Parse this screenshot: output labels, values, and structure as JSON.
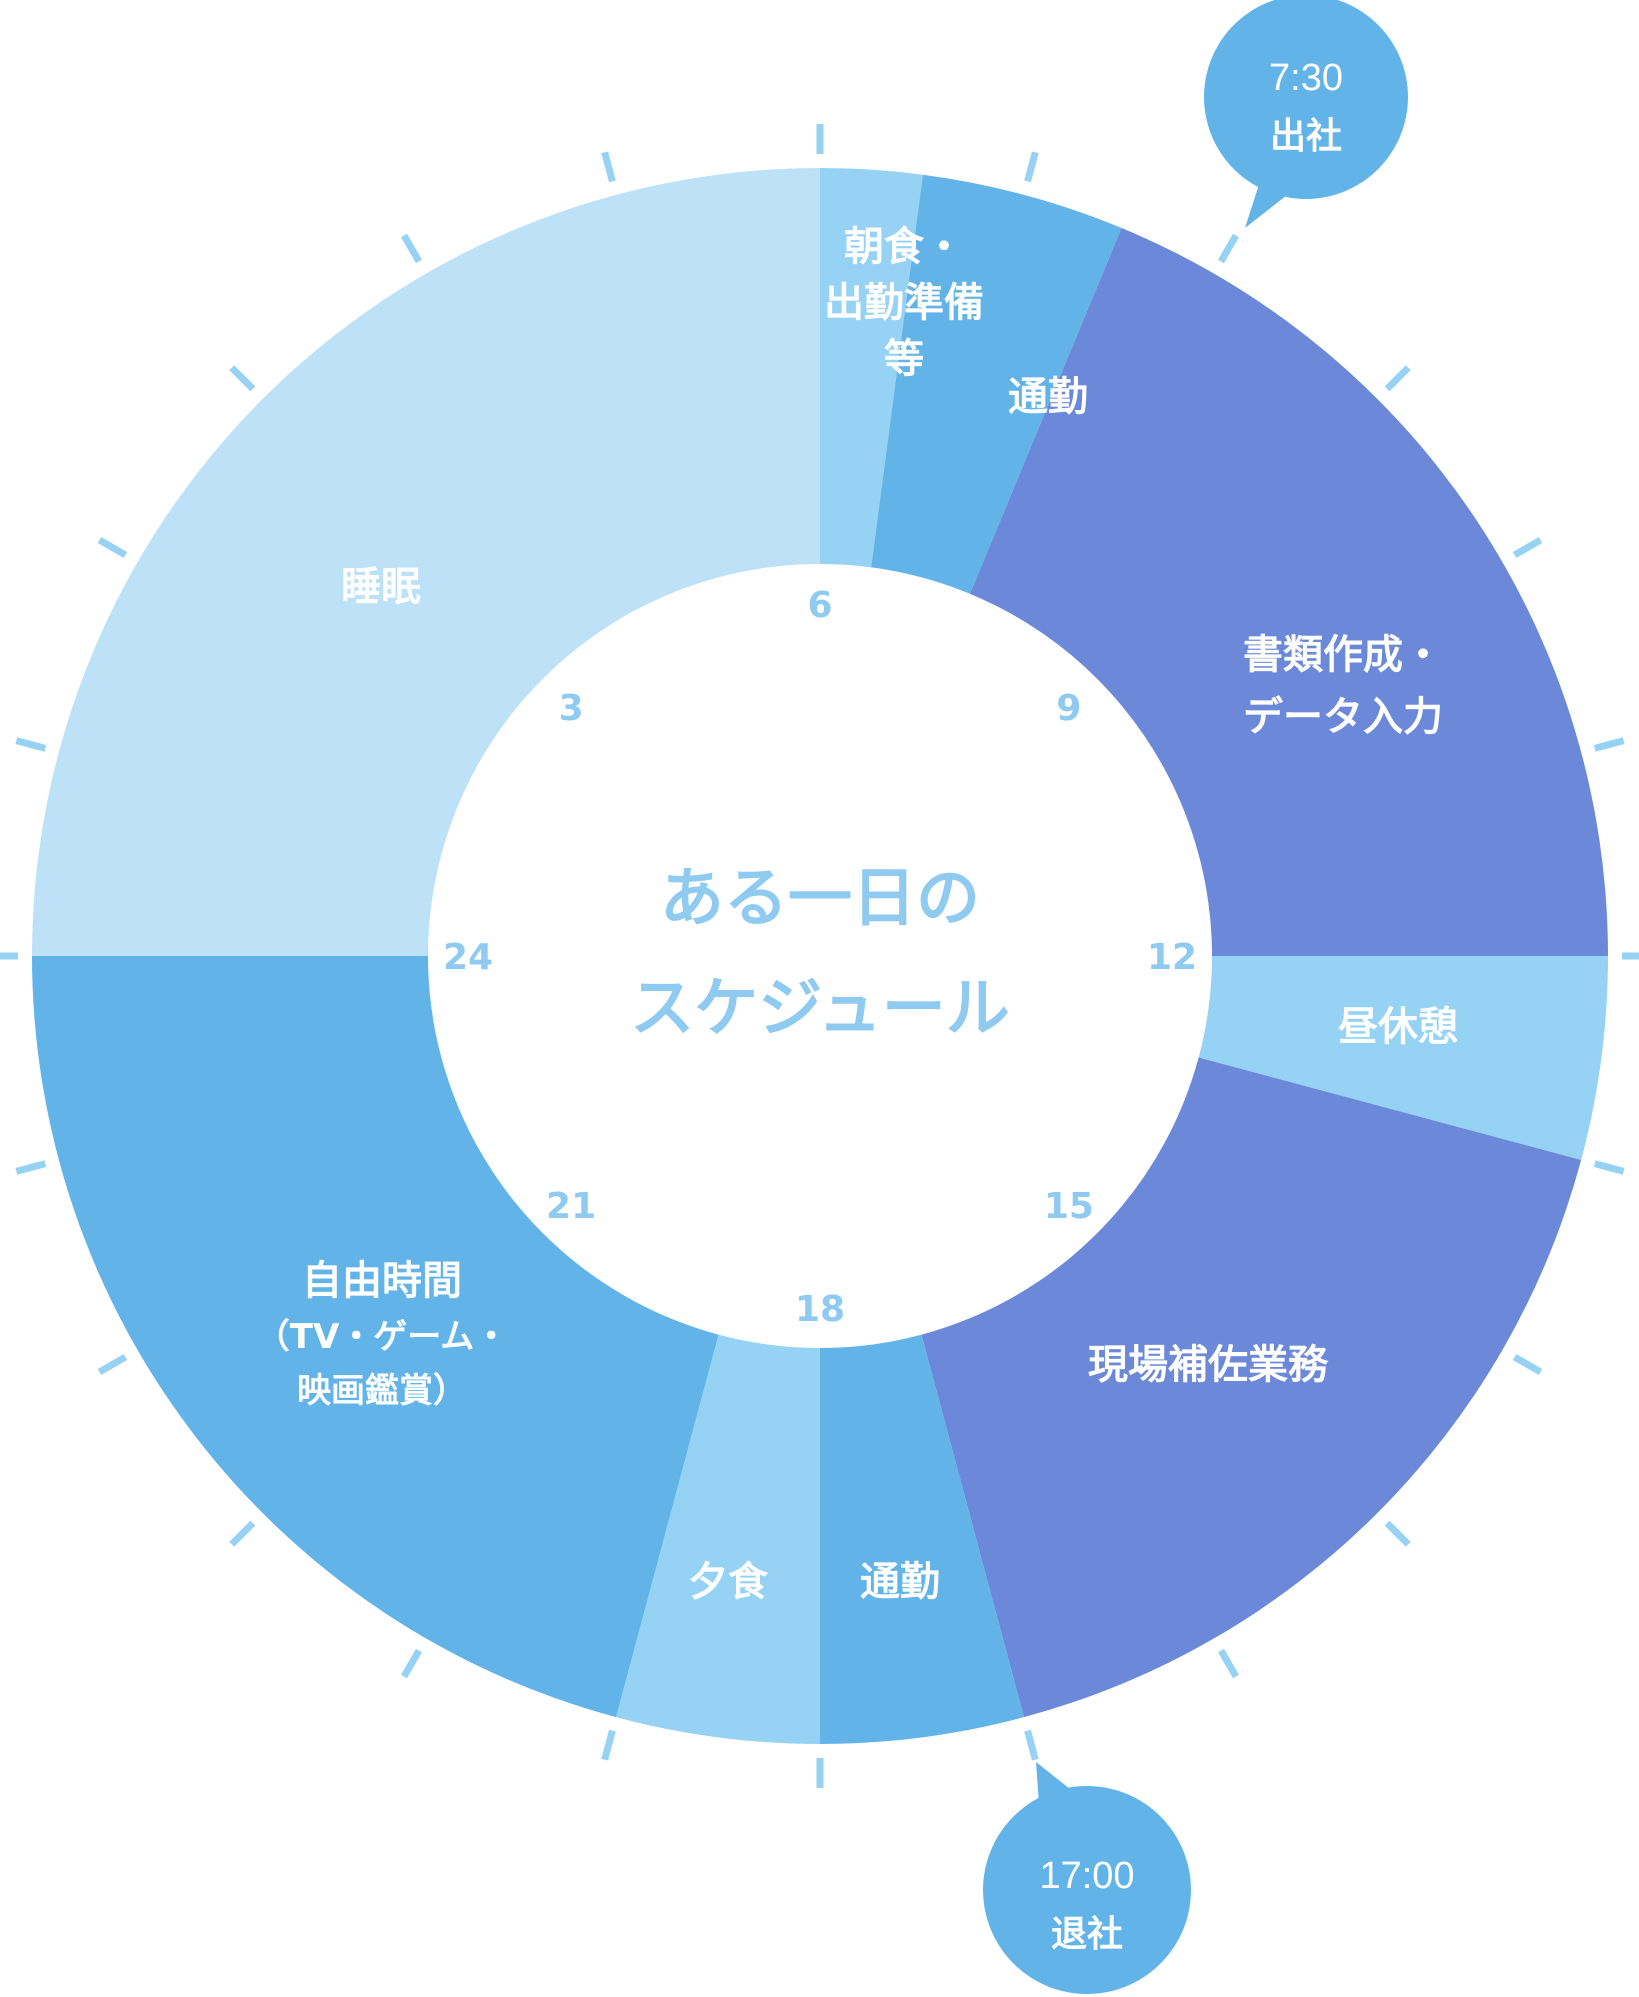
{
  "title_lines": [
    "ある一日の",
    "スケジュール"
  ],
  "colors": {
    "sleep": "#bde2f8",
    "light": "#96d2f4",
    "mid": "#62b4e8",
    "work": "#6b89d8",
    "tick": "#96d2f4",
    "hour_label": "#8fcaf0",
    "callout": "#62b4e8"
  },
  "hour_labels": [
    "3",
    "6",
    "9",
    "12",
    "15",
    "18",
    "21",
    "24"
  ],
  "segments": [
    {
      "id": "sleep",
      "start": 0,
      "end": 6,
      "color": "sleep",
      "label_lines": [
        "睡眠"
      ]
    },
    {
      "id": "breakfast",
      "start": 6,
      "end": 6.5,
      "color": "light",
      "label_lines": [
        "朝食・",
        "出勤準備",
        "等"
      ]
    },
    {
      "id": "commute-am",
      "start": 6.5,
      "end": 7.5,
      "color": "mid",
      "label_lines": [
        "通勤"
      ]
    },
    {
      "id": "docs",
      "start": 7.5,
      "end": 12,
      "color": "work",
      "label_lines": [
        "書類作成・",
        "データ入力"
      ]
    },
    {
      "id": "lunch",
      "start": 12,
      "end": 13,
      "color": "light",
      "label_lines": [
        "昼休憩"
      ]
    },
    {
      "id": "fieldwork",
      "start": 13,
      "end": 17,
      "color": "work",
      "label_lines": [
        "現場補佐業務"
      ]
    },
    {
      "id": "commute-pm",
      "start": 17,
      "end": 18,
      "color": "mid",
      "label_lines": [
        "通勤"
      ]
    },
    {
      "id": "dinner",
      "start": 18,
      "end": 19,
      "color": "light",
      "label_lines": [
        "夕食"
      ]
    },
    {
      "id": "free",
      "start": 19,
      "end": 24,
      "color": "mid",
      "label_lines": [
        "自由時間",
        "（TV・ゲーム・",
        "映画鑑賞）"
      ]
    }
  ],
  "callouts": [
    {
      "id": "arrive",
      "time": "7:30",
      "text": "出社"
    },
    {
      "id": "leave",
      "time": "17:00",
      "text": "退社"
    }
  ]
}
